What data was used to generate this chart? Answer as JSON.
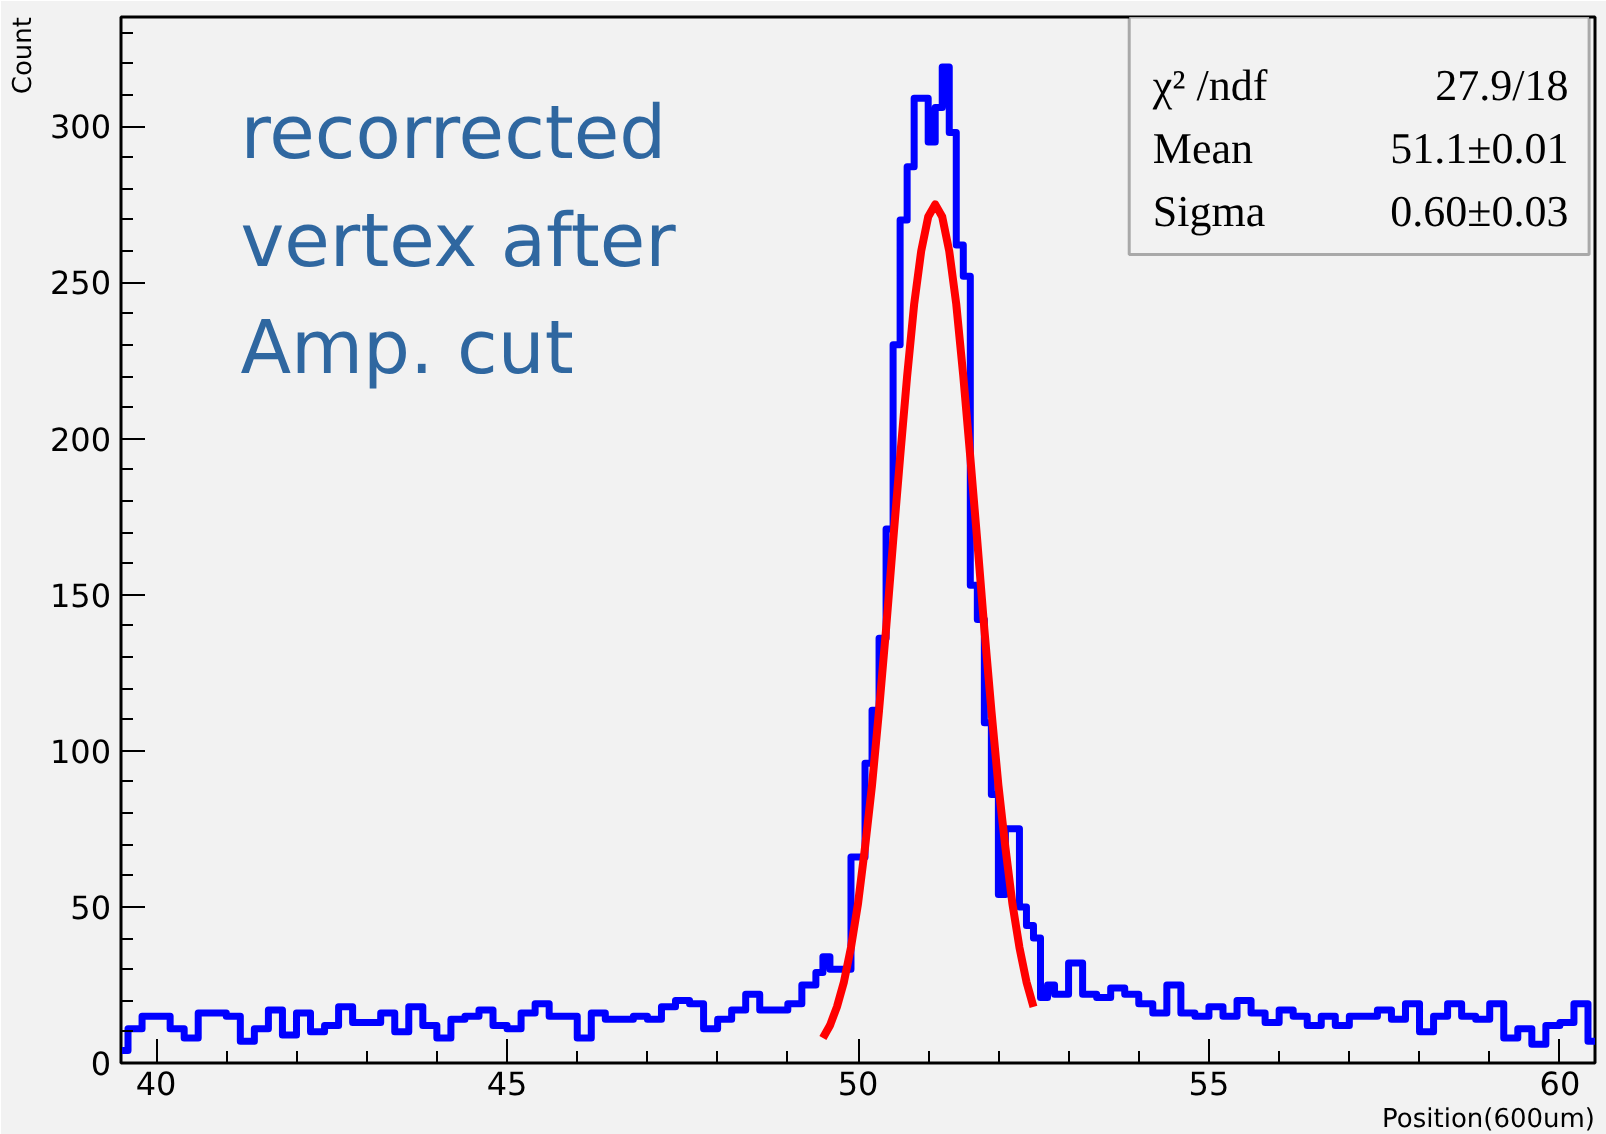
{
  "chart_data": {
    "type": "histogram",
    "xlabel": "Position(600um)",
    "ylabel": "Count",
    "bins": [
      39.5,
      39.6,
      39.8,
      40.0,
      40.2,
      40.4,
      40.6,
      40.8,
      41.0,
      41.2,
      41.4,
      41.6,
      41.8,
      42.0,
      42.2,
      42.4,
      42.6,
      42.8,
      43.0,
      43.2,
      43.4,
      43.6,
      43.8,
      44.0,
      44.2,
      44.4,
      44.6,
      44.8,
      45.0,
      45.2,
      45.4,
      45.6,
      45.8,
      46.0,
      46.2,
      46.4,
      46.6,
      46.8,
      47.0,
      47.2,
      47.4,
      47.6,
      47.8,
      48.0,
      48.2,
      48.4,
      48.6,
      48.8,
      49.0,
      49.2,
      49.4,
      49.5,
      49.6,
      49.7,
      49.8,
      49.9,
      50.0,
      50.1,
      50.2,
      50.3,
      50.4,
      50.5,
      50.6,
      50.7,
      50.8,
      50.9,
      51.0,
      51.1,
      51.2,
      51.3,
      51.4,
      51.5,
      51.6,
      51.7,
      51.8,
      51.9,
      52.0,
      52.1,
      52.2,
      52.3,
      52.4,
      52.5,
      52.6,
      52.7,
      52.8,
      53.0,
      53.2,
      53.4,
      53.6,
      53.8,
      54.0,
      54.2,
      54.4,
      54.6,
      54.8,
      55.0,
      55.2,
      55.4,
      55.6,
      55.8,
      56.0,
      56.2,
      56.4,
      56.6,
      56.8,
      57.0,
      57.2,
      57.4,
      57.6,
      57.8,
      58.0,
      58.2,
      58.4,
      58.6,
      58.8,
      59.0,
      59.2,
      59.4,
      59.6,
      59.8,
      60.0,
      60.2,
      60.4,
      60.5
    ],
    "series": [
      {
        "type": "histogram",
        "color": "#0000ff",
        "values": [
          4,
          11,
          15,
          15,
          11,
          8,
          16,
          16,
          15,
          7,
          11,
          17,
          9,
          16,
          10,
          12,
          18,
          13,
          13,
          16,
          10,
          18,
          12,
          8,
          14,
          15,
          17,
          12,
          11,
          16,
          19,
          15,
          15,
          8,
          16,
          14,
          14,
          15,
          14,
          18,
          20,
          19,
          11,
          14,
          17,
          22,
          17,
          17,
          19,
          25,
          29,
          34,
          30,
          30,
          30,
          66,
          66,
          96,
          113,
          136,
          171,
          230,
          270,
          287,
          309,
          309,
          295,
          306,
          319,
          298,
          262,
          252,
          153,
          142,
          109,
          86,
          54,
          75,
          75,
          50,
          44,
          40,
          21,
          25,
          22,
          32,
          22,
          21,
          24,
          22,
          19,
          16,
          25,
          16,
          15,
          18,
          15,
          20,
          16,
          13,
          17,
          15,
          12,
          15,
          12,
          15,
          15,
          17,
          14,
          19,
          10,
          15,
          19,
          15,
          14,
          19,
          8,
          11,
          6,
          12,
          13,
          19,
          7
        ]
      },
      {
        "type": "line",
        "color": "#ff0000",
        "x": [
          49.5,
          49.6,
          49.7,
          49.8,
          49.9,
          50.0,
          50.1,
          50.2,
          50.3,
          50.4,
          50.5,
          50.6,
          50.7,
          50.8,
          50.9,
          51.0,
          51.1,
          51.2,
          51.3,
          51.4,
          51.5,
          51.6,
          51.7,
          51.8,
          51.9,
          52.0,
          52.1,
          52.2,
          52.3,
          52.4,
          52.5
        ],
        "values": [
          8,
          12,
          18,
          26,
          37,
          51,
          69,
          89,
          113,
          139,
          167,
          194,
          220,
          243,
          260,
          271,
          275,
          271,
          260,
          243,
          220,
          194,
          167,
          139,
          113,
          89,
          69,
          51,
          37,
          26,
          18
        ]
      }
    ],
    "xlim": [
      39.5,
      60.5
    ],
    "xticks": [
      40,
      {
        "value": 41,
        "label": null
      },
      {
        "value": 42,
        "label": null
      },
      {
        "value": 43,
        "label": null
      },
      {
        "value": 44,
        "label": null
      },
      45,
      {
        "value": 46,
        "label": null
      },
      {
        "value": 47,
        "label": null
      },
      {
        "value": 48,
        "label": null
      },
      {
        "value": 49,
        "label": null
      },
      50,
      {
        "value": 51,
        "label": null
      },
      {
        "value": 52,
        "label": null
      },
      {
        "value": 53,
        "label": null
      },
      {
        "value": 54,
        "label": null
      },
      55,
      {
        "value": 56,
        "label": null
      },
      {
        "value": 57,
        "label": null
      },
      {
        "value": 58,
        "label": null
      },
      {
        "value": 59,
        "label": null
      },
      60
    ],
    "ylim": [
      0,
      335
    ],
    "yticks": [
      0,
      {
        "value": 10,
        "label": null
      },
      {
        "value": 20,
        "label": null
      },
      {
        "value": 30,
        "label": null
      },
      {
        "value": 40,
        "label": null
      },
      50,
      {
        "value": 60,
        "label": null
      },
      {
        "value": 70,
        "label": null
      },
      {
        "value": 80,
        "label": null
      },
      {
        "value": 90,
        "label": null
      },
      100,
      {
        "value": 110,
        "label": null
      },
      {
        "value": 120,
        "label": null
      },
      {
        "value": 130,
        "label": null
      },
      {
        "value": 140,
        "label": null
      },
      150,
      {
        "value": 160,
        "label": null
      },
      {
        "value": 170,
        "label": null
      },
      {
        "value": 180,
        "label": null
      },
      {
        "value": 190,
        "label": null
      },
      200,
      {
        "value": 210,
        "label": null
      },
      {
        "value": 220,
        "label": null
      },
      {
        "value": 230,
        "label": null
      },
      {
        "value": 240,
        "label": null
      },
      250,
      {
        "value": 260,
        "label": null
      },
      {
        "value": 270,
        "label": null
      },
      {
        "value": 280,
        "label": null
      },
      {
        "value": 290,
        "label": null
      },
      300,
      {
        "value": 310,
        "label": null
      },
      {
        "value": 320,
        "label": null
      },
      {
        "value": 330,
        "label": null
      }
    ],
    "annotations": [
      "recorrected\nvertex after\nAmp. cut",
      "χ² /ndf",
      "27.9/18",
      "Mean",
      "51.1±0.01",
      "Sigma",
      "0.60±0.03"
    ],
    "grid": false
  }
}
